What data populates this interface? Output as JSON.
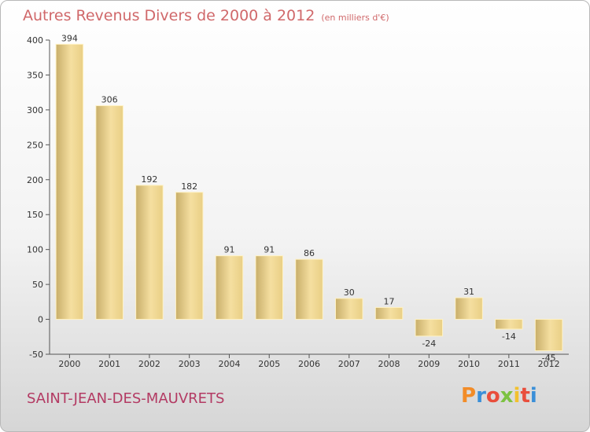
{
  "header": {
    "title": "Autres Revenus Divers de 2000 à 2012",
    "subtitle": "(en milliers d'€)"
  },
  "footer": {
    "location": "SAINT-JEAN-DES-MAUVRETS",
    "logo_text": "Proxiti",
    "logo_colors": [
      "#f28c28",
      "#3a8fd8",
      "#e94e3c",
      "#7cc242",
      "#f2c12e",
      "#e94e3c",
      "#3a8fd8"
    ]
  },
  "colors": {
    "bar_light": "#f2dc9c",
    "bar_dark": "#c8ae6a",
    "title": "#d0686a",
    "location": "#b33a63"
  },
  "chart_data": {
    "type": "bar",
    "title": "Autres Revenus Divers de 2000 à 2012",
    "subtitle": "(en milliers d'€)",
    "categories": [
      "2000",
      "2001",
      "2002",
      "2003",
      "2004",
      "2005",
      "2006",
      "2007",
      "2008",
      "2009",
      "2010",
      "2011",
      "2012"
    ],
    "values": [
      394,
      306,
      192,
      182,
      91,
      91,
      86,
      30,
      17,
      -24,
      31,
      -14,
      -45
    ],
    "value_labels": [
      "394",
      "306",
      "192",
      "182",
      "91",
      "91",
      "86",
      "30",
      "17",
      "-24",
      "31",
      "-14",
      "-45"
    ],
    "ylim": [
      -50,
      400
    ],
    "yticks": [
      -50,
      0,
      50,
      100,
      150,
      200,
      250,
      300,
      350,
      400
    ],
    "ytick_labels": [
      "-50",
      "0",
      "50",
      "100",
      "150",
      "200",
      "250",
      "300",
      "350",
      "400"
    ],
    "grid": false,
    "legend": "none"
  }
}
